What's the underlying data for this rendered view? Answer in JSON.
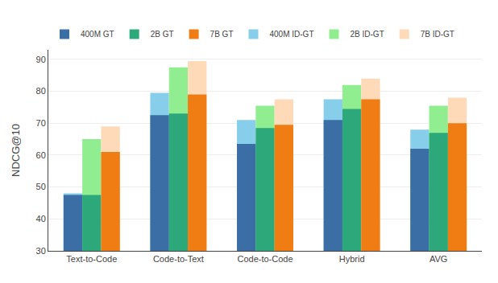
{
  "chart_data": {
    "type": "bar",
    "categories": [
      "Text-to-Code",
      "Code-to-Text",
      "Code-to-Code",
      "Hybrid",
      "AVG"
    ],
    "series": [
      {
        "name": "400M GT",
        "color": "#3A6EA5",
        "values": [
          47.5,
          72.5,
          63.5,
          71.0,
          62.0
        ]
      },
      {
        "name": "2B GT",
        "color": "#2CA87A",
        "values": [
          47.5,
          73.0,
          68.5,
          74.5,
          67.0
        ]
      },
      {
        "name": "7B GT",
        "color": "#F07C14",
        "values": [
          61.0,
          79.0,
          69.5,
          77.5,
          70.0
        ]
      },
      {
        "name": "400M ID-GT",
        "color": "#87CEEB",
        "values": [
          48.0,
          79.5,
          71.0,
          77.5,
          68.0
        ]
      },
      {
        "name": "2B ID-GT",
        "color": "#90EE90",
        "values": [
          65.0,
          87.5,
          75.5,
          82.0,
          75.5
        ]
      },
      {
        "name": "7B ID-GT",
        "color": "#FFDAB9",
        "values": [
          69.0,
          89.5,
          77.5,
          84.0,
          78.0
        ]
      }
    ],
    "ylabel": "NDCG@10",
    "ylim": [
      30,
      93
    ],
    "yticks": [
      30,
      40,
      50,
      60,
      70,
      80,
      90
    ],
    "grid": true,
    "legend": "upper left"
  }
}
